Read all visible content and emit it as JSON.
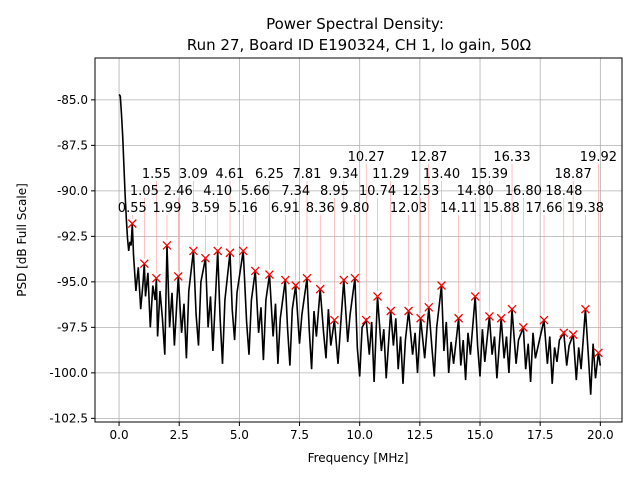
{
  "chart_data": {
    "type": "line",
    "title": "Power Spectral Density:",
    "subtitle": "Run 27, Board ID E190324, CH 1, lo gain, 50Ω",
    "xlabel": "Frequency [MHz]",
    "ylabel": "PSD [dB Full Scale]",
    "xlim": [
      -1.0,
      20.9
    ],
    "ylim": [
      -102.7,
      -82.7
    ],
    "grid": true,
    "xticks": [
      "0.0",
      "2.5",
      "5.0",
      "7.5",
      "10.0",
      "12.5",
      "15.0",
      "17.5",
      "20.0"
    ],
    "xtick_values": [
      0,
      2.5,
      5,
      7.5,
      10,
      12.5,
      15,
      17.5,
      20
    ],
    "yticks": [
      "-85.0",
      "-87.5",
      "-90.0",
      "-92.5",
      "-95.0",
      "-97.5",
      "-100.0",
      "-102.5"
    ],
    "ytick_values": [
      -85,
      -87.5,
      -90,
      -92.5,
      -95,
      -97.5,
      -100,
      -102.5
    ],
    "line_color": "#000000",
    "marker_color": "#ff0000",
    "trace": {
      "x": [
        0.0,
        0.05,
        0.1,
        0.15,
        0.2,
        0.25,
        0.3,
        0.35,
        0.4,
        0.45,
        0.5,
        0.55,
        0.6,
        0.7,
        0.8,
        0.9,
        1.0,
        1.05,
        1.1,
        1.2,
        1.3,
        1.4,
        1.5,
        1.55,
        1.6,
        1.7,
        1.8,
        1.9,
        1.99,
        2.1,
        2.2,
        2.3,
        2.46,
        2.6,
        2.7,
        2.8,
        2.9,
        3.09,
        3.2,
        3.3,
        3.4,
        3.59,
        3.7,
        3.8,
        3.9,
        4.1,
        4.2,
        4.3,
        4.4,
        4.61,
        4.7,
        4.8,
        4.9,
        5.16,
        5.3,
        5.4,
        5.5,
        5.66,
        5.8,
        5.9,
        6.0,
        6.1,
        6.25,
        6.4,
        6.5,
        6.6,
        6.7,
        6.91,
        7.0,
        7.1,
        7.2,
        7.34,
        7.5,
        7.6,
        7.81,
        7.9,
        8.0,
        8.1,
        8.2,
        8.36,
        8.5,
        8.6,
        8.7,
        8.8,
        8.95,
        9.1,
        9.2,
        9.34,
        9.5,
        9.6,
        9.8,
        9.9,
        10.0,
        10.1,
        10.27,
        10.4,
        10.5,
        10.6,
        10.74,
        10.9,
        11.0,
        11.1,
        11.29,
        11.4,
        11.5,
        11.6,
        11.7,
        11.8,
        11.9,
        12.03,
        12.2,
        12.3,
        12.4,
        12.53,
        12.7,
        12.87,
        13.0,
        13.1,
        13.2,
        13.4,
        13.5,
        13.6,
        13.7,
        13.8,
        13.9,
        14.11,
        14.2,
        14.3,
        14.4,
        14.5,
        14.6,
        14.8,
        14.9,
        15.0,
        15.1,
        15.2,
        15.39,
        15.5,
        15.6,
        15.7,
        15.88,
        16.0,
        16.1,
        16.2,
        16.33,
        16.5,
        16.6,
        16.8,
        16.9,
        17.0,
        17.1,
        17.2,
        17.3,
        17.4,
        17.66,
        17.8,
        17.9,
        18.0,
        18.1,
        18.2,
        18.3,
        18.48,
        18.6,
        18.7,
        18.87,
        19.0,
        19.1,
        19.2,
        19.38,
        19.5,
        19.6,
        19.7,
        19.8,
        19.92,
        20.0
      ],
      "y": [
        -84.7,
        -84.8,
        -85.8,
        -87.0,
        -88.6,
        -90.2,
        -91.5,
        -92.6,
        -93.3,
        -92.8,
        -93.0,
        -91.8,
        -93.5,
        -95.5,
        -94.2,
        -96.5,
        -95.0,
        -94.0,
        -95.8,
        -94.5,
        -97.5,
        -95.2,
        -96.0,
        -94.8,
        -98.0,
        -95.5,
        -97.0,
        -99.0,
        -93.0,
        -97.5,
        -95.6,
        -98.5,
        -94.7,
        -97.8,
        -96.2,
        -99.2,
        -95.5,
        -93.3,
        -96.8,
        -98.5,
        -95.0,
        -93.7,
        -97.5,
        -95.8,
        -98.8,
        -93.3,
        -97.0,
        -99.5,
        -96.0,
        -93.4,
        -96.5,
        -98.2,
        -95.6,
        -93.3,
        -97.2,
        -99.0,
        -96.0,
        -94.4,
        -97.8,
        -96.4,
        -99.3,
        -96.0,
        -94.6,
        -98.0,
        -96.2,
        -99.5,
        -97.0,
        -94.9,
        -97.5,
        -99.6,
        -96.5,
        -95.2,
        -98.4,
        -96.8,
        -94.8,
        -97.6,
        -99.8,
        -96.6,
        -98.0,
        -95.4,
        -97.8,
        -99.2,
        -96.5,
        -98.5,
        -97.1,
        -99.5,
        -97.5,
        -94.9,
        -98.3,
        -96.8,
        -94.8,
        -98.6,
        -100.2,
        -97.5,
        -97.1,
        -99.0,
        -97.2,
        -100.5,
        -95.8,
        -98.8,
        -97.6,
        -100.3,
        -96.6,
        -98.5,
        -97.0,
        -99.8,
        -98.0,
        -100.6,
        -98.2,
        -96.6,
        -99.0,
        -97.8,
        -100.0,
        -97.0,
        -99.2,
        -96.4,
        -98.6,
        -100.2,
        -97.5,
        -95.2,
        -98.8,
        -97.2,
        -100.0,
        -98.3,
        -99.5,
        -97.0,
        -99.6,
        -98.2,
        -100.4,
        -97.8,
        -99.0,
        -95.8,
        -98.5,
        -100.2,
        -97.6,
        -99.4,
        -96.9,
        -99.0,
        -98.0,
        -100.3,
        -97.0,
        -99.2,
        -98.0,
        -100.0,
        -96.5,
        -99.5,
        -98.2,
        -97.5,
        -99.8,
        -98.4,
        -100.5,
        -97.8,
        -99.2,
        -98.6,
        -97.1,
        -99.5,
        -98.0,
        -100.6,
        -98.6,
        -99.4,
        -98.2,
        -97.8,
        -99.6,
        -98.5,
        -97.9,
        -100.4,
        -98.6,
        -99.8,
        -96.5,
        -99.0,
        -101.2,
        -98.4,
        -100.3,
        -98.9,
        -99.6
      ]
    },
    "peaks": [
      {
        "label": "0.55",
        "x": 0.55,
        "y": -91.8
      },
      {
        "label": "1.05",
        "x": 1.05,
        "y": -94.0
      },
      {
        "label": "1.55",
        "x": 1.55,
        "y": -94.8
      },
      {
        "label": "1.99",
        "x": 1.99,
        "y": -93.0
      },
      {
        "label": "2.46",
        "x": 2.46,
        "y": -94.7
      },
      {
        "label": "3.09",
        "x": 3.09,
        "y": -93.3
      },
      {
        "label": "3.59",
        "x": 3.59,
        "y": -93.7
      },
      {
        "label": "4.10",
        "x": 4.1,
        "y": -93.3
      },
      {
        "label": "4.61",
        "x": 4.61,
        "y": -93.4
      },
      {
        "label": "5.16",
        "x": 5.16,
        "y": -93.3
      },
      {
        "label": "5.66",
        "x": 5.66,
        "y": -94.4
      },
      {
        "label": "6.25",
        "x": 6.25,
        "y": -94.6
      },
      {
        "label": "6.91",
        "x": 6.91,
        "y": -94.9
      },
      {
        "label": "7.34",
        "x": 7.34,
        "y": -95.2
      },
      {
        "label": "7.81",
        "x": 7.81,
        "y": -94.8
      },
      {
        "label": "8.36",
        "x": 8.36,
        "y": -95.4
      },
      {
        "label": "8.95",
        "x": 8.95,
        "y": -97.1
      },
      {
        "label": "9.34",
        "x": 9.34,
        "y": -94.9
      },
      {
        "label": "9.80",
        "x": 9.8,
        "y": -94.8
      },
      {
        "label": "10.27",
        "x": 10.27,
        "y": -97.1
      },
      {
        "label": "10.74",
        "x": 10.74,
        "y": -95.8
      },
      {
        "label": "11.29",
        "x": 11.29,
        "y": -96.6
      },
      {
        "label": "12.03",
        "x": 12.03,
        "y": -96.6
      },
      {
        "label": "12.53",
        "x": 12.53,
        "y": -97.0
      },
      {
        "label": "12.87",
        "x": 12.87,
        "y": -96.4
      },
      {
        "label": "13.40",
        "x": 13.4,
        "y": -95.2
      },
      {
        "label": "14.11",
        "x": 14.11,
        "y": -97.0
      },
      {
        "label": "14.80",
        "x": 14.8,
        "y": -95.8
      },
      {
        "label": "15.39",
        "x": 15.39,
        "y": -96.9
      },
      {
        "label": "15.88",
        "x": 15.88,
        "y": -97.0
      },
      {
        "label": "16.33",
        "x": 16.33,
        "y": -96.5
      },
      {
        "label": "16.80",
        "x": 16.8,
        "y": -97.5
      },
      {
        "label": "17.66",
        "x": 17.66,
        "y": -97.1
      },
      {
        "label": "18.48",
        "x": 18.48,
        "y": -97.8
      },
      {
        "label": "18.87",
        "x": 18.87,
        "y": -97.9
      },
      {
        "label": "19.38",
        "x": 19.38,
        "y": -96.5
      },
      {
        "label": "19.92",
        "x": 19.92,
        "y": -98.9
      }
    ]
  }
}
